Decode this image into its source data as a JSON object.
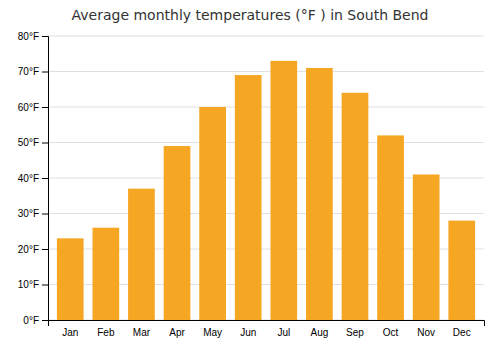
{
  "chart_data": {
    "type": "bar",
    "title": "Average monthly temperatures (°F ) in South Bend",
    "categories": [
      "Jan",
      "Feb",
      "Mar",
      "Apr",
      "May",
      "Jun",
      "Jul",
      "Aug",
      "Sep",
      "Oct",
      "Nov",
      "Dec"
    ],
    "values": [
      23,
      26,
      37,
      49,
      60,
      69,
      73,
      71,
      64,
      52,
      41,
      28
    ],
    "color": "#F5A623",
    "ylim": [
      0,
      80
    ],
    "yticks": [
      {
        "value": 0,
        "label": "0°F"
      },
      {
        "value": 10,
        "label": "10°F"
      },
      {
        "value": 20,
        "label": "20°F"
      },
      {
        "value": 30,
        "label": "30°F"
      },
      {
        "value": 40,
        "label": "40°F"
      },
      {
        "value": 50,
        "label": "50°F"
      },
      {
        "value": 60,
        "label": "60°F"
      },
      {
        "value": 70,
        "label": "70°F"
      },
      {
        "value": 80,
        "label": "80°F"
      }
    ],
    "grid": true
  }
}
